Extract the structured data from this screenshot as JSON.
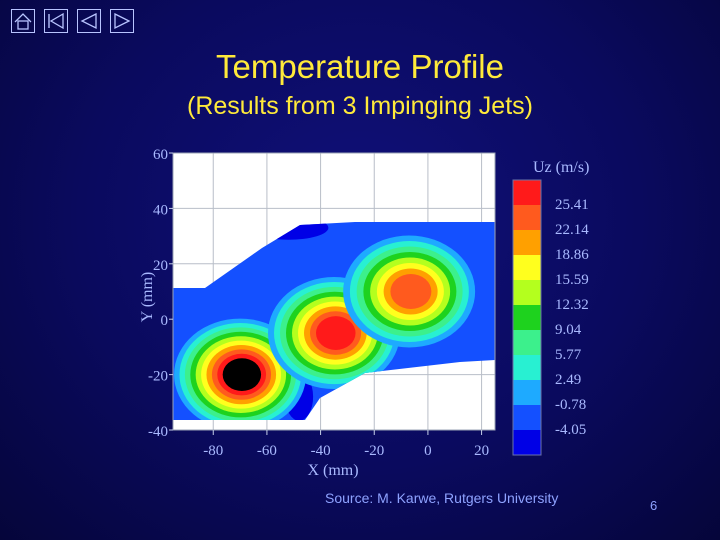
{
  "navigation": {
    "items": [
      {
        "name": "home-button",
        "icon": "home-icon"
      },
      {
        "name": "first-slide-button",
        "icon": "first-slide-icon"
      },
      {
        "name": "previous-slide-button",
        "icon": "previous-icon"
      },
      {
        "name": "next-slide-button",
        "icon": "next-icon"
      }
    ]
  },
  "slide": {
    "title": "Temperature Profile",
    "subtitle": "(Results from 3 Impinging Jets)",
    "source": "Source: M. Karwe, Rutgers University",
    "number": "6"
  },
  "chart_data": {
    "type": "heatmap",
    "xlabel": "X (mm)",
    "ylabel": "Y (mm)",
    "xlim": [
      -95,
      25
    ],
    "ylim": [
      -40,
      60
    ],
    "x_ticks": [
      -80,
      -60,
      -40,
      -20,
      0,
      20
    ],
    "y_ticks": [
      60,
      40,
      20,
      0,
      -20,
      -40
    ],
    "grid": true,
    "legend": {
      "title": "Uz (m/s)",
      "placement": "right",
      "levels": [
        25.41,
        22.14,
        18.86,
        15.59,
        12.32,
        9.04,
        5.77,
        2.49,
        -0.78,
        -4.05
      ],
      "colors": [
        "#ff1a1a",
        "#ff5a1e",
        "#ffa000",
        "#ffff1e",
        "#b4ff1e",
        "#1ed21e",
        "#3cf08c",
        "#28f0d2",
        "#1eaaff",
        "#1450ff",
        "#0000e6"
      ]
    },
    "jets": [
      {
        "x": -70,
        "y": -20,
        "peak": 25.41
      },
      {
        "x": -35,
        "y": -5,
        "peak": 22.14
      },
      {
        "x": -7,
        "y": 10,
        "peak": 18.86
      }
    ]
  }
}
